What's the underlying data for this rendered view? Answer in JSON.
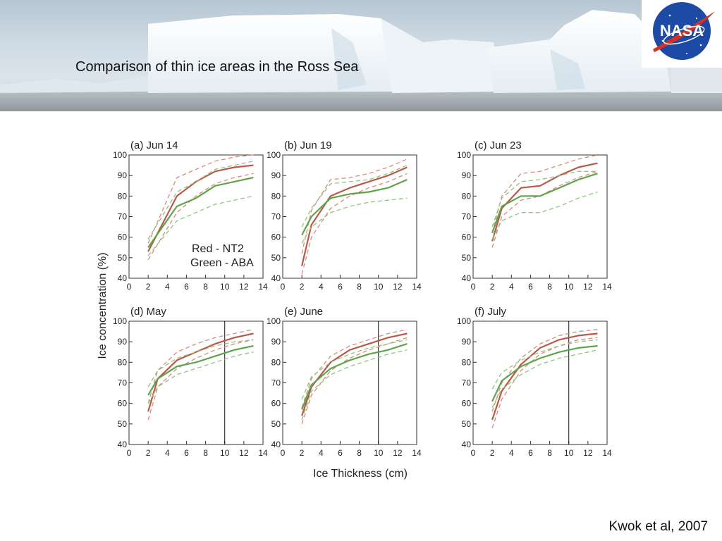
{
  "slide": {
    "title": "Comparison of thin ice areas in the Ross Sea",
    "citation": "Kwok et al, 2007",
    "logo_text": "NASA"
  },
  "colors": {
    "nt2": "#b85a4a",
    "nt2_dashed": "#d98a7c",
    "aba": "#5fa44c",
    "aba_dashed": "#8fc47e",
    "frame": "#333333"
  },
  "chart_data": {
    "type": "line",
    "ylabel": "Ice concentration (%)",
    "xlabel": "Ice Thickness (cm)",
    "xlim": [
      0,
      14
    ],
    "ylim": [
      40,
      100
    ],
    "xticks": [
      0,
      2,
      4,
      6,
      8,
      10,
      12,
      14
    ],
    "yticks": [
      40,
      50,
      60,
      70,
      80,
      90,
      100
    ],
    "legend": {
      "placement": "center-right of panel (a)",
      "entries": [
        "Red - NT2",
        "Green - ABA"
      ]
    },
    "panels": [
      {
        "title": "(a) Jun 14",
        "vline": null,
        "series": [
          {
            "name": "Red - NT2",
            "x": [
              2,
              5,
              7,
              9,
              11,
              13
            ],
            "values": [
              53,
              80,
              87,
              92,
              94,
              95
            ]
          },
          {
            "name": "Red - NT2 upper",
            "x": [
              2,
              5,
              7,
              9,
              11,
              13
            ],
            "values": [
              57,
              89,
              93,
              97,
              99,
              100
            ]
          },
          {
            "name": "Red - NT2 lower",
            "x": [
              2,
              5,
              7,
              9,
              11,
              13
            ],
            "values": [
              49,
              72,
              80,
              86,
              89,
              91
            ]
          },
          {
            "name": "Green - ABA",
            "x": [
              2,
              5,
              7,
              9,
              11,
              13
            ],
            "values": [
              55,
              75,
              79,
              85,
              87,
              89
            ]
          },
          {
            "name": "Green - ABA upper",
            "x": [
              2,
              5,
              7,
              9,
              11,
              13
            ],
            "values": [
              59,
              82,
              87,
              93,
              95,
              97
            ]
          },
          {
            "name": "Green - ABA lower",
            "x": [
              2,
              5,
              7,
              9,
              11,
              13
            ],
            "values": [
              51,
              68,
              72,
              76,
              78,
              80
            ]
          }
        ]
      },
      {
        "title": "(b) Jun 19",
        "vline": null,
        "series": [
          {
            "name": "Red - NT2",
            "x": [
              2,
              3,
              5,
              7,
              9,
              11,
              13
            ],
            "values": [
              46,
              66,
              80,
              84,
              87,
              90,
              94
            ]
          },
          {
            "name": "Red - NT2 upper",
            "x": [
              2,
              3,
              5,
              7,
              9,
              11,
              13
            ],
            "values": [
              52,
              73,
              88,
              89,
              91,
              94,
              98
            ]
          },
          {
            "name": "Red - NT2 lower",
            "x": [
              2,
              3,
              5,
              7,
              9,
              11,
              13
            ],
            "values": [
              42,
              60,
              74,
              80,
              84,
              87,
              91
            ]
          },
          {
            "name": "Green - ABA",
            "x": [
              2,
              3,
              5,
              7,
              9,
              11,
              13
            ],
            "values": [
              61,
              70,
              79,
              81,
              82,
              84,
              88
            ]
          },
          {
            "name": "Green - ABA upper",
            "x": [
              2,
              3,
              5,
              7,
              9,
              11,
              13
            ],
            "values": [
              65,
              74,
              86,
              87,
              88,
              91,
              95
            ]
          },
          {
            "name": "Green - ABA lower",
            "x": [
              2,
              3,
              5,
              7,
              9,
              11,
              13
            ],
            "values": [
              57,
              65,
              72,
              75,
              77,
              78,
              79
            ]
          }
        ]
      },
      {
        "title": "(c) Jun 23",
        "vline": null,
        "series": [
          {
            "name": "Red - NT2",
            "x": [
              2,
              3,
              5,
              7,
              9,
              11,
              13
            ],
            "values": [
              58,
              74,
              84,
              85,
              90,
              94,
              96
            ]
          },
          {
            "name": "Red - NT2 upper",
            "x": [
              2,
              3,
              5,
              7,
              9,
              11,
              13
            ],
            "values": [
              62,
              80,
              91,
              92,
              95,
              98,
              100
            ]
          },
          {
            "name": "Red - NT2 lower",
            "x": [
              2,
              3,
              5,
              7,
              9,
              11,
              13
            ],
            "values": [
              55,
              70,
              78,
              80,
              85,
              89,
              92
            ]
          },
          {
            "name": "Green - ABA",
            "x": [
              2,
              3,
              5,
              7,
              9,
              11,
              13
            ],
            "values": [
              62,
              75,
              80,
              80,
              84,
              88,
              91
            ]
          },
          {
            "name": "Green - ABA upper",
            "x": [
              2,
              3,
              5,
              7,
              9,
              11,
              13
            ],
            "values": [
              65,
              79,
              87,
              88,
              90,
              92,
              92
            ]
          },
          {
            "name": "Green - ABA lower",
            "x": [
              2,
              3,
              5,
              7,
              9,
              11,
              13
            ],
            "values": [
              59,
              68,
              72,
              72,
              75,
              79,
              82
            ]
          }
        ]
      },
      {
        "title": "(d) May",
        "vline": 10,
        "series": [
          {
            "name": "Red - NT2",
            "x": [
              2,
              3,
              5,
              7,
              9,
              11,
              13
            ],
            "values": [
              56,
              72,
              81,
              85,
              89,
              92,
              94
            ]
          },
          {
            "name": "Red - NT2 upper",
            "x": [
              2,
              3,
              5,
              7,
              9,
              11,
              13
            ],
            "values": [
              60,
              76,
              85,
              89,
              92,
              94,
              96
            ]
          },
          {
            "name": "Red - NT2 lower",
            "x": [
              2,
              3,
              5,
              7,
              9,
              11,
              13
            ],
            "values": [
              52,
              68,
              77,
              82,
              86,
              89,
              91
            ]
          },
          {
            "name": "Green - ABA",
            "x": [
              2,
              3,
              5,
              7,
              9,
              11,
              13
            ],
            "values": [
              64,
              72,
              78,
              80,
              83,
              86,
              88
            ]
          },
          {
            "name": "Green - ABA upper",
            "x": [
              2,
              3,
              5,
              7,
              9,
              11,
              13
            ],
            "values": [
              68,
              76,
              82,
              85,
              88,
              90,
              91
            ]
          },
          {
            "name": "Green - ABA lower",
            "x": [
              2,
              3,
              5,
              7,
              9,
              11,
              13
            ],
            "values": [
              60,
              68,
              74,
              77,
              80,
              83,
              85
            ]
          }
        ]
      },
      {
        "title": "(e) June",
        "vline": 10,
        "series": [
          {
            "name": "Red - NT2",
            "x": [
              2,
              3,
              5,
              7,
              9,
              11,
              13
            ],
            "values": [
              54,
              68,
              80,
              86,
              89,
              92,
              94
            ]
          },
          {
            "name": "Red - NT2 upper",
            "x": [
              2,
              3,
              5,
              7,
              9,
              11,
              13
            ],
            "values": [
              58,
              72,
              83,
              88,
              91,
              94,
              96
            ]
          },
          {
            "name": "Red - NT2 lower",
            "x": [
              2,
              3,
              5,
              7,
              9,
              11,
              13
            ],
            "values": [
              50,
              64,
              76,
              82,
              86,
              89,
              92
            ]
          },
          {
            "name": "Green - ABA",
            "x": [
              2,
              3,
              5,
              7,
              9,
              11,
              13
            ],
            "values": [
              57,
              69,
              77,
              81,
              84,
              86,
              89
            ]
          },
          {
            "name": "Green - ABA upper",
            "x": [
              2,
              3,
              5,
              7,
              9,
              11,
              13
            ],
            "values": [
              62,
              73,
              80,
              84,
              87,
              89,
              91
            ]
          },
          {
            "name": "Green - ABA lower",
            "x": [
              2,
              3,
              5,
              7,
              9,
              11,
              13
            ],
            "values": [
              52,
              66,
              74,
              78,
              81,
              84,
              86
            ]
          }
        ]
      },
      {
        "title": "(f) July",
        "vline": 10,
        "series": [
          {
            "name": "Red - NT2",
            "x": [
              2,
              3,
              5,
              7,
              9,
              11,
              13
            ],
            "values": [
              52,
              66,
              79,
              87,
              91,
              93,
              94
            ]
          },
          {
            "name": "Red - NT2 upper",
            "x": [
              2,
              3,
              5,
              7,
              9,
              11,
              13
            ],
            "values": [
              56,
              70,
              82,
              89,
              93,
              95,
              96
            ]
          },
          {
            "name": "Red - NT2 lower",
            "x": [
              2,
              3,
              5,
              7,
              9,
              11,
              13
            ],
            "values": [
              48,
              62,
              76,
              84,
              88,
              91,
              92
            ]
          },
          {
            "name": "Green - ABA",
            "x": [
              2,
              3,
              5,
              7,
              9,
              11,
              13
            ],
            "values": [
              61,
              71,
              78,
              82,
              85,
              87,
              88
            ]
          },
          {
            "name": "Green - ABA upper",
            "x": [
              2,
              3,
              5,
              7,
              9,
              11,
              13
            ],
            "values": [
              67,
              75,
              81,
              85,
              88,
              90,
              91
            ]
          },
          {
            "name": "Green - ABA lower",
            "x": [
              2,
              3,
              5,
              7,
              9,
              11,
              13
            ],
            "values": [
              58,
              67,
              74,
              79,
              82,
              84,
              86
            ]
          }
        ]
      }
    ]
  }
}
